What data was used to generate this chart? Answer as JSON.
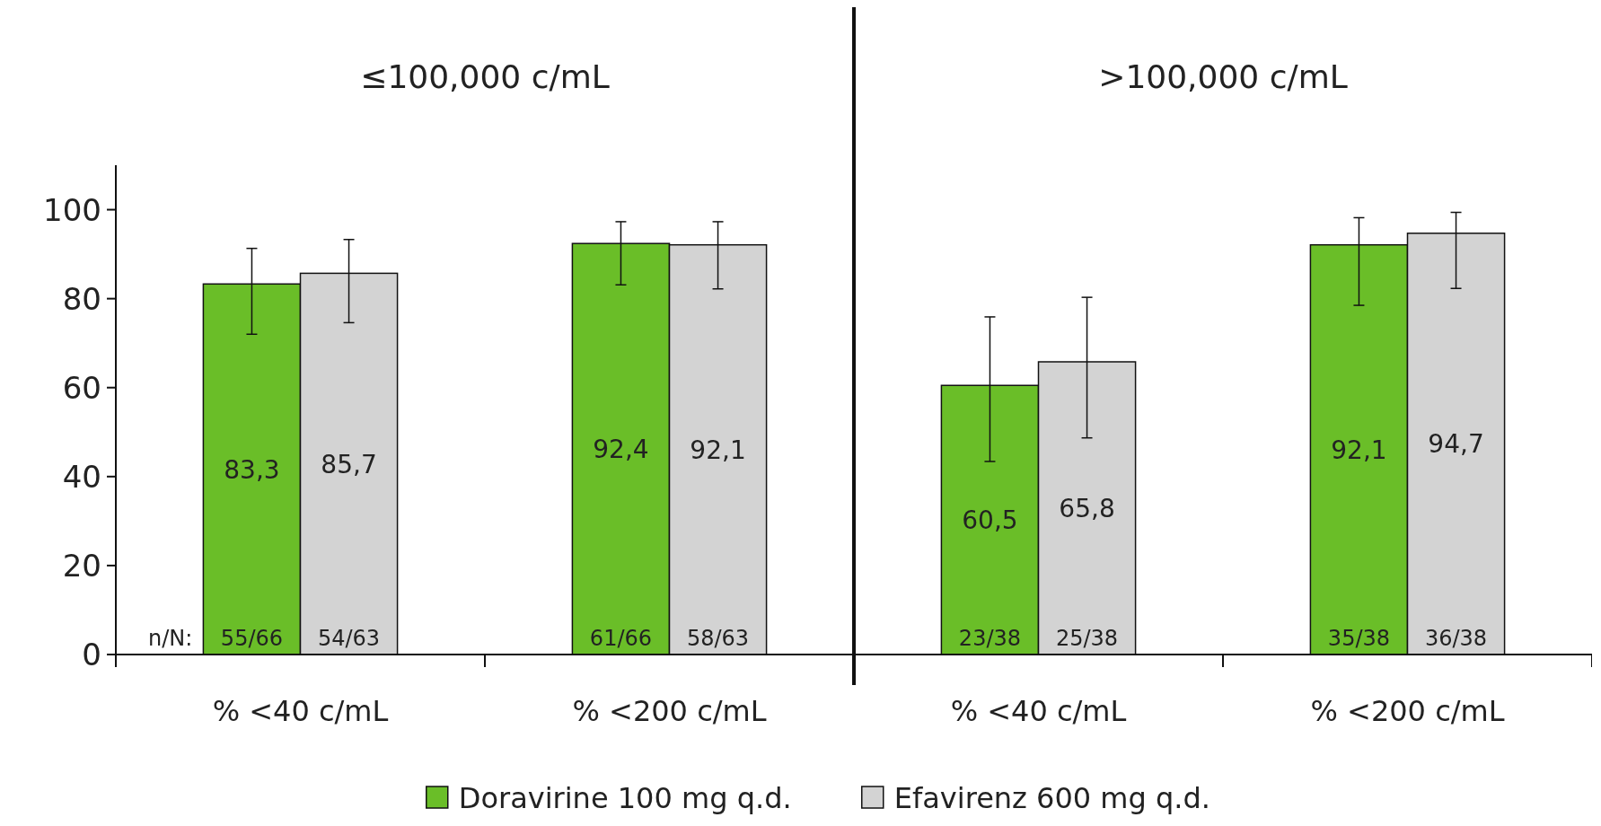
{
  "chart_data": {
    "type": "bar",
    "categories": [
      "% <40 c/mL",
      "% <200 c/mL",
      "% <40 c/mL",
      "% <200 c/mL"
    ],
    "series": [
      {
        "name": "Doravirine 100 mg q.d.",
        "color": "#6abe28",
        "values": [
          83.3,
          92.4,
          60.5,
          92.1
        ],
        "value_labels": [
          "83,3",
          "92,4",
          "60,5",
          "92,1"
        ],
        "errors": [
          [
            72.0,
            91.3
          ],
          [
            83.1,
            97.3
          ],
          [
            43.4,
            75.9
          ],
          [
            78.5,
            98.2
          ]
        ]
      },
      {
        "name": "Efavirenz 600 mg q.d.",
        "color": "#d3d3d3",
        "values": [
          85.7,
          92.1,
          65.8,
          94.7
        ],
        "value_labels": [
          "85,7",
          "92,1",
          "65,8",
          "94,7"
        ],
        "errors": [
          [
            74.6,
            93.3
          ],
          [
            82.2,
            97.3
          ],
          [
            48.7,
            80.3
          ],
          [
            82.3,
            99.4
          ]
        ]
      }
    ],
    "ylim": [
      0,
      110
    ],
    "yticks": [
      0,
      20,
      40,
      60,
      80,
      100
    ],
    "legend": "bottom",
    "grid": false,
    "annotations": [
      "≤100,000 c/mL",
      ">100,000 c/mL",
      "n/N:",
      "55/66",
      "54/63",
      "61/66",
      "58/63",
      "23/38",
      "25/38",
      "35/38",
      "36/38"
    ]
  }
}
